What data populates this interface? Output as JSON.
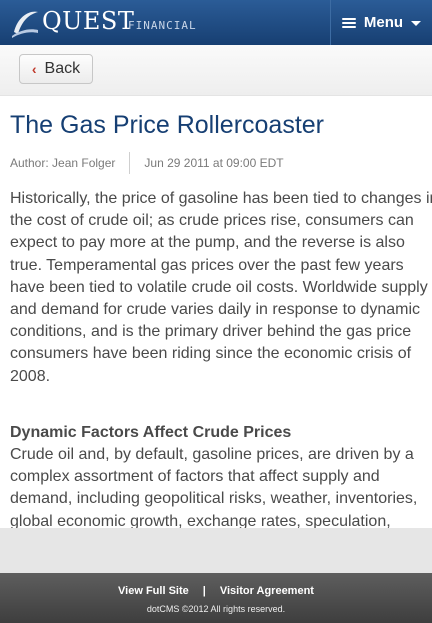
{
  "header": {
    "brand_main": "QUEST",
    "brand_sub": "FINANCIAL",
    "menu_label": "Menu"
  },
  "nav": {
    "back_label": "Back"
  },
  "article": {
    "title": "The Gas Price Rollercoaster",
    "author": "Author: Jean Folger",
    "date": "Jun 29 2011 at 09:00 EDT",
    "paragraph1": "Historically, the price of gasoline has been tied to changes in the cost of crude oil; as crude prices rise, consumers can expect to pay more at the pump, and the reverse is also true. Temperamental gas prices over the past few years have been tied to volatile crude oil costs. Worldwide supply and demand for crude varies daily in response to dynamic conditions, and is the primary driver behind the gas price consumers have been riding since the economic crisis of 2008.",
    "section_heading": "Dynamic Factors Affect Crude Prices",
    "paragraph2": "Crude oil and, by default, gasoline prices, are driven by a complex assortment of factors that affect supply and demand, including geopolitical risks, weather, inventories, global economic growth, exchange rates, speculation,"
  },
  "footer": {
    "link_full_site": "View Full Site",
    "separator": "|",
    "link_visitor": "Visitor Agreement",
    "copyright": "dotCMS ©2012 All rights reserved."
  },
  "colors": {
    "header_blue": "#1f4b82",
    "title_blue": "#163f73",
    "back_chevron": "#c0392b"
  }
}
